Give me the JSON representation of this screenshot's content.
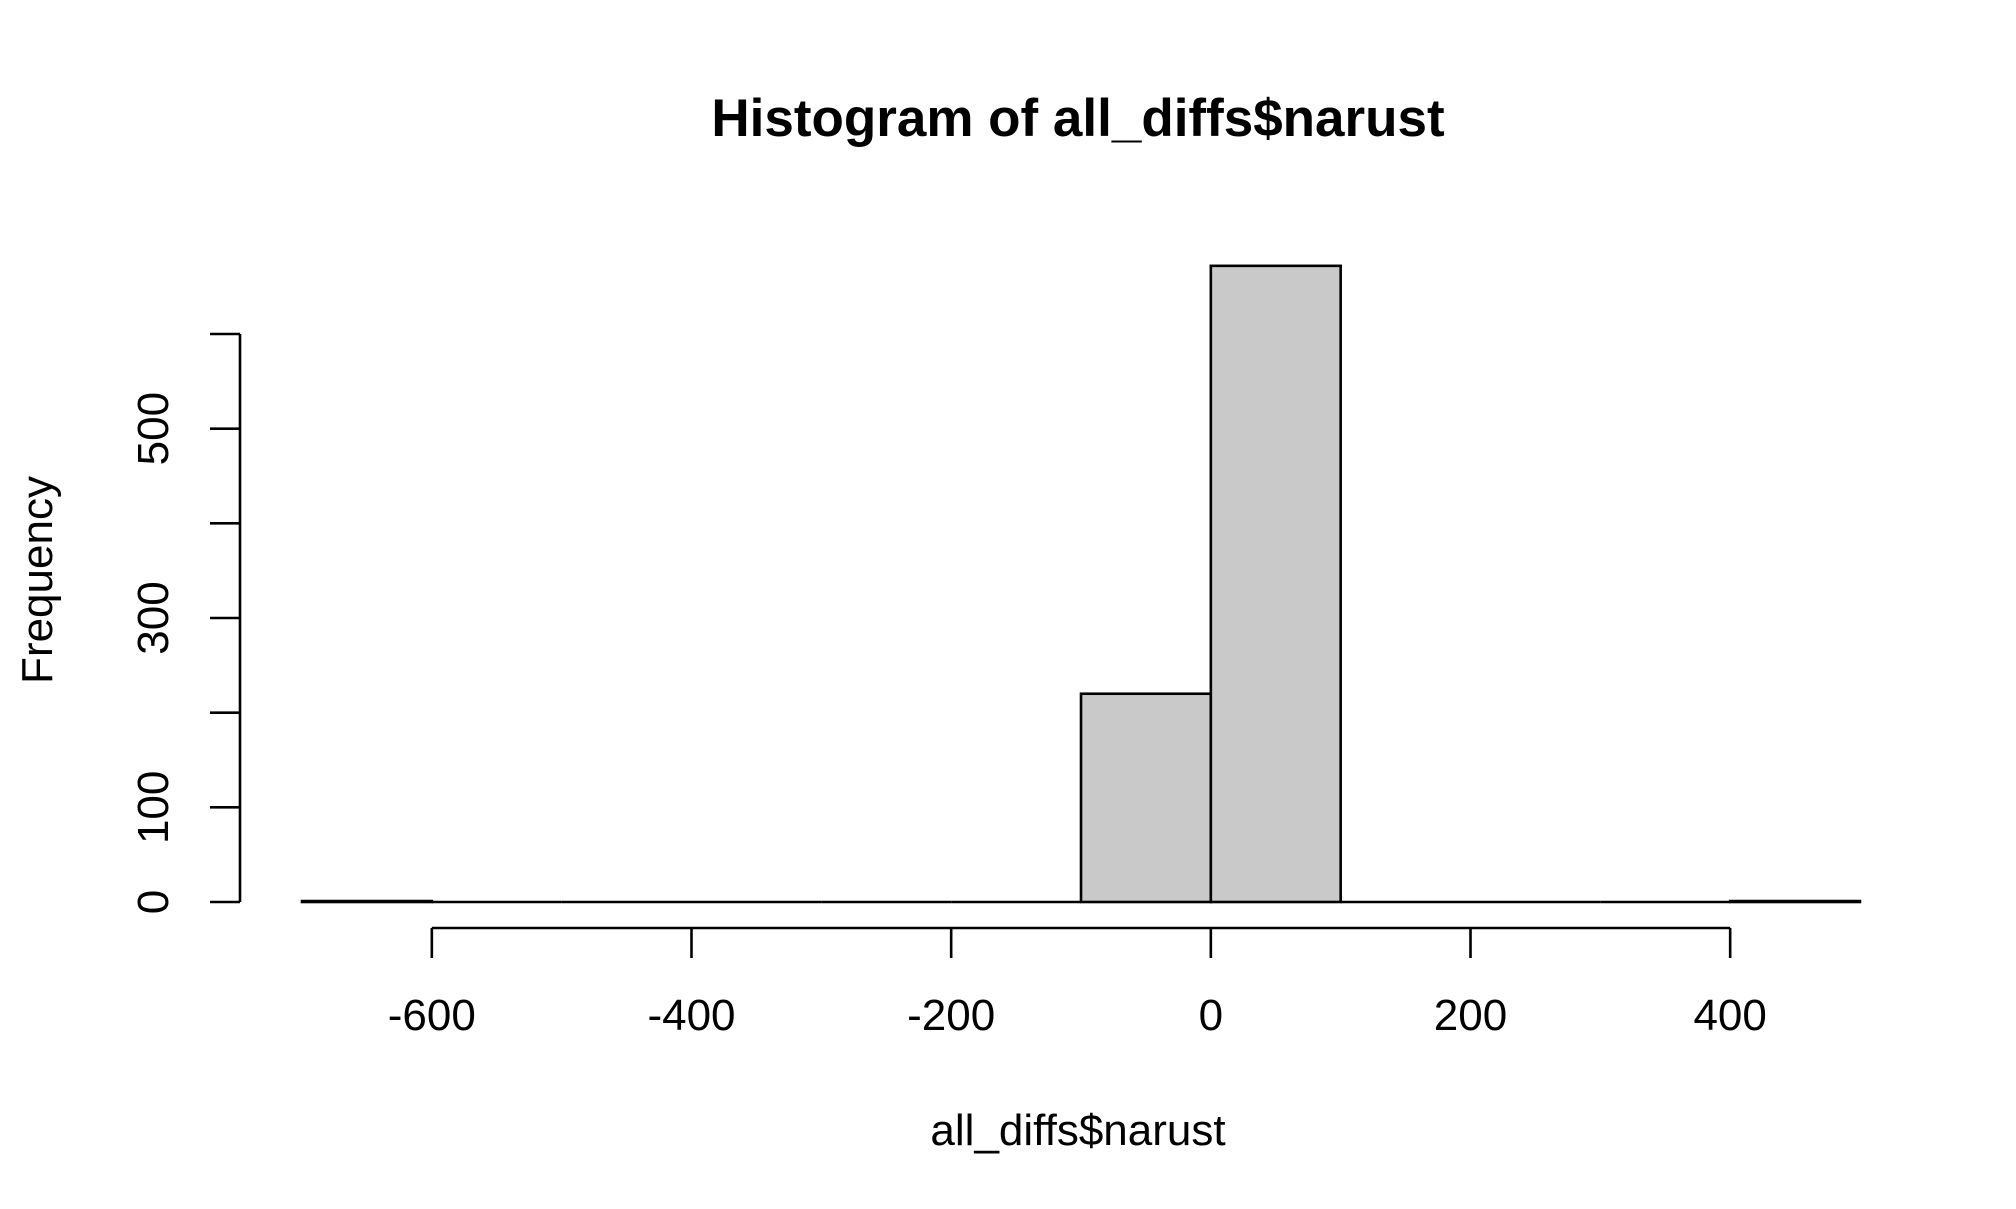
{
  "chart_data": {
    "type": "bar",
    "title": "Histogram of all_diffs$narust",
    "xlabel": "all_diffs$narust",
    "ylabel": "Frequency",
    "bin_edges": [
      -700,
      -600,
      -500,
      -400,
      -300,
      -200,
      -100,
      0,
      100,
      200,
      300,
      400,
      500
    ],
    "values": [
      1,
      0,
      0,
      0,
      0,
      0,
      220,
      672,
      0,
      0,
      0,
      1
    ],
    "xlim": [
      -700,
      500
    ],
    "ylim": [
      0,
      672
    ],
    "x_ticks": [
      -600,
      -400,
      -200,
      0,
      200,
      400
    ],
    "y_ticks": [
      0,
      100,
      200,
      300,
      400,
      500,
      600
    ],
    "y_tick_labels": [
      "0",
      "100",
      "",
      "300",
      "",
      "500",
      ""
    ],
    "bar_color": "#c9c9c9",
    "grid": false,
    "legend": "none"
  }
}
